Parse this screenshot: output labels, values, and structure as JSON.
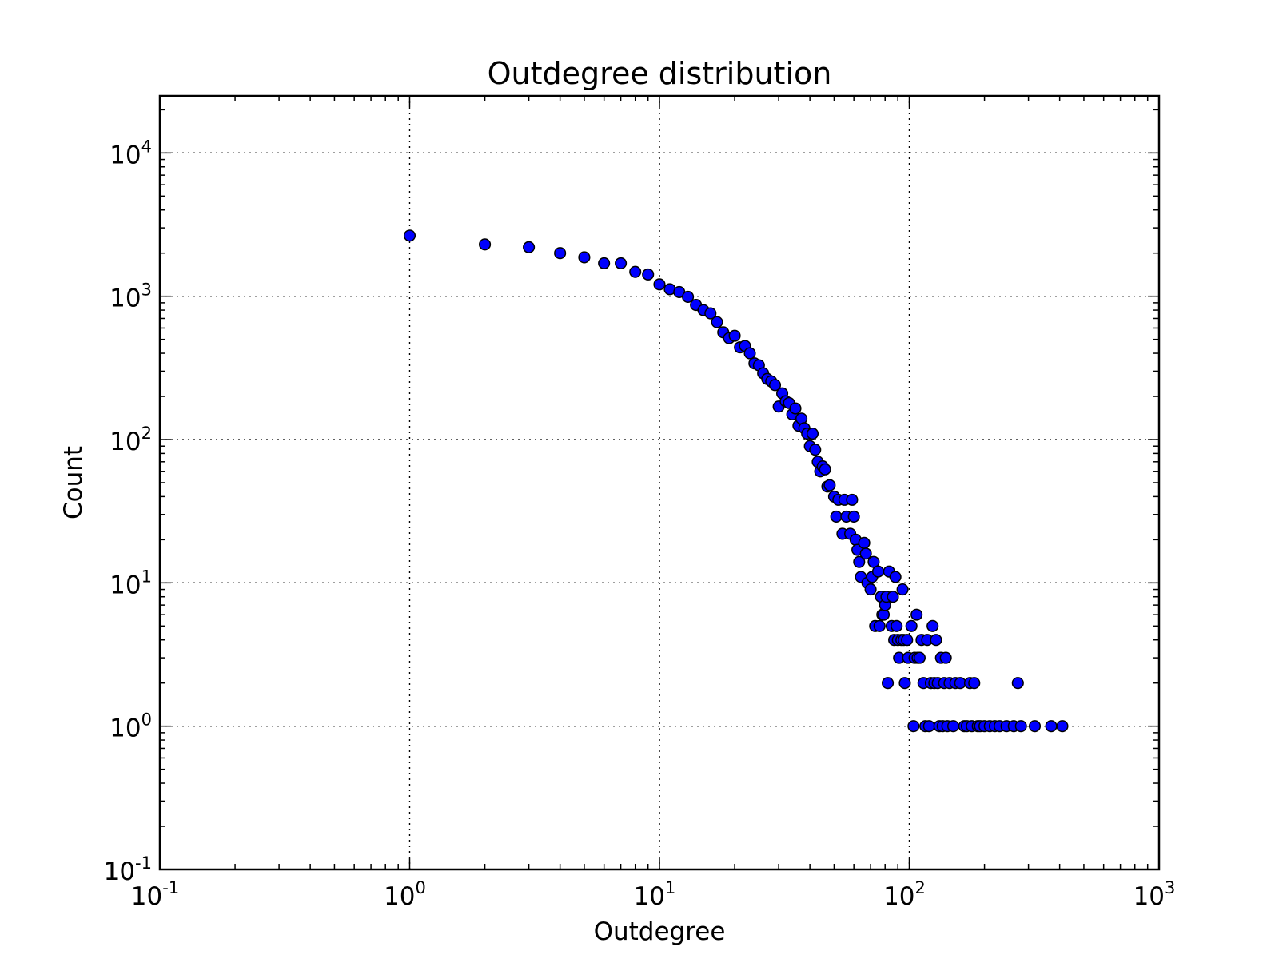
{
  "chart_data": {
    "type": "scatter",
    "title": "Outdegree distribution",
    "xlabel": "Outdegree",
    "ylabel": "Count",
    "xscale": "log",
    "yscale": "log",
    "xlim": [
      0.1,
      1000
    ],
    "ylim": [
      0.1,
      25000
    ],
    "grid": true,
    "marker_color": "#0000ff",
    "marker_edge_color": "#000000",
    "x_ticks": [
      {
        "value": 0.1,
        "base": "10",
        "exp": "-1"
      },
      {
        "value": 1,
        "base": "10",
        "exp": "0"
      },
      {
        "value": 10,
        "base": "10",
        "exp": "1"
      },
      {
        "value": 100,
        "base": "10",
        "exp": "2"
      },
      {
        "value": 1000,
        "base": "10",
        "exp": "3"
      }
    ],
    "y_ticks": [
      {
        "value": 0.1,
        "base": "10",
        "exp": "-1"
      },
      {
        "value": 1,
        "base": "10",
        "exp": "0"
      },
      {
        "value": 10,
        "base": "10",
        "exp": "1"
      },
      {
        "value": 100,
        "base": "10",
        "exp": "2"
      },
      {
        "value": 1000,
        "base": "10",
        "exp": "3"
      },
      {
        "value": 10000,
        "base": "10",
        "exp": "4"
      }
    ],
    "points": [
      [
        1,
        2650
      ],
      [
        2,
        2300
      ],
      [
        3,
        2200
      ],
      [
        4,
        2000
      ],
      [
        5,
        1870
      ],
      [
        6,
        1700
      ],
      [
        7,
        1700
      ],
      [
        8,
        1480
      ],
      [
        9,
        1420
      ],
      [
        10,
        1210
      ],
      [
        11,
        1120
      ],
      [
        12,
        1070
      ],
      [
        13,
        990
      ],
      [
        14,
        870
      ],
      [
        15,
        800
      ],
      [
        16,
        760
      ],
      [
        17,
        660
      ],
      [
        18,
        560
      ],
      [
        19,
        510
      ],
      [
        20,
        530
      ],
      [
        21,
        440
      ],
      [
        22,
        450
      ],
      [
        23,
        400
      ],
      [
        24,
        340
      ],
      [
        25,
        330
      ],
      [
        26,
        290
      ],
      [
        27,
        265
      ],
      [
        28,
        255
      ],
      [
        29,
        240
      ],
      [
        30,
        170
      ],
      [
        31,
        210
      ],
      [
        32,
        185
      ],
      [
        33,
        180
      ],
      [
        34,
        150
      ],
      [
        35,
        165
      ],
      [
        36,
        125
      ],
      [
        37,
        140
      ],
      [
        38,
        120
      ],
      [
        39,
        110
      ],
      [
        40,
        90
      ],
      [
        41,
        110
      ],
      [
        42,
        85
      ],
      [
        43,
        70
      ],
      [
        44,
        60
      ],
      [
        45,
        65
      ],
      [
        46,
        62
      ],
      [
        47,
        47
      ],
      [
        48,
        48
      ],
      [
        50,
        40
      ],
      [
        51,
        29
      ],
      [
        52,
        38
      ],
      [
        54,
        22
      ],
      [
        55,
        38
      ],
      [
        56,
        29
      ],
      [
        58,
        22
      ],
      [
        59,
        38
      ],
      [
        60,
        29
      ],
      [
        61,
        20
      ],
      [
        62,
        17
      ],
      [
        63,
        14
      ],
      [
        64,
        11
      ],
      [
        66,
        19
      ],
      [
        67,
        16
      ],
      [
        68,
        10
      ],
      [
        70,
        9
      ],
      [
        71,
        11
      ],
      [
        72,
        14
      ],
      [
        73,
        5
      ],
      [
        75,
        12
      ],
      [
        76,
        5
      ],
      [
        77,
        8
      ],
      [
        78,
        6
      ],
      [
        79,
        6
      ],
      [
        80,
        7
      ],
      [
        81,
        8
      ],
      [
        82,
        2
      ],
      [
        83,
        12
      ],
      [
        85,
        5
      ],
      [
        86,
        8
      ],
      [
        87,
        4
      ],
      [
        88,
        11
      ],
      [
        89,
        5
      ],
      [
        90,
        4
      ],
      [
        91,
        3
      ],
      [
        93,
        4
      ],
      [
        94,
        9
      ],
      [
        95,
        4
      ],
      [
        96,
        2
      ],
      [
        98,
        4
      ],
      [
        99,
        3
      ],
      [
        102,
        5
      ],
      [
        104,
        1
      ],
      [
        105,
        3
      ],
      [
        107,
        6
      ],
      [
        108,
        3
      ],
      [
        110,
        3
      ],
      [
        112,
        4
      ],
      [
        114,
        2
      ],
      [
        116,
        1
      ],
      [
        118,
        4
      ],
      [
        120,
        1
      ],
      [
        122,
        2
      ],
      [
        124,
        5
      ],
      [
        126,
        2
      ],
      [
        128,
        4
      ],
      [
        130,
        2
      ],
      [
        132,
        1
      ],
      [
        134,
        3
      ],
      [
        136,
        1
      ],
      [
        138,
        2
      ],
      [
        140,
        3
      ],
      [
        142,
        1
      ],
      [
        145,
        2
      ],
      [
        150,
        1
      ],
      [
        153,
        2
      ],
      [
        160,
        2
      ],
      [
        166,
        1
      ],
      [
        170,
        1
      ],
      [
        175,
        2
      ],
      [
        178,
        1
      ],
      [
        182,
        2
      ],
      [
        188,
        1
      ],
      [
        192,
        1
      ],
      [
        200,
        1
      ],
      [
        210,
        1
      ],
      [
        220,
        1
      ],
      [
        230,
        1
      ],
      [
        245,
        1
      ],
      [
        262,
        1
      ],
      [
        272,
        2
      ],
      [
        280,
        1
      ],
      [
        318,
        1
      ],
      [
        370,
        1
      ],
      [
        410,
        1
      ]
    ]
  }
}
